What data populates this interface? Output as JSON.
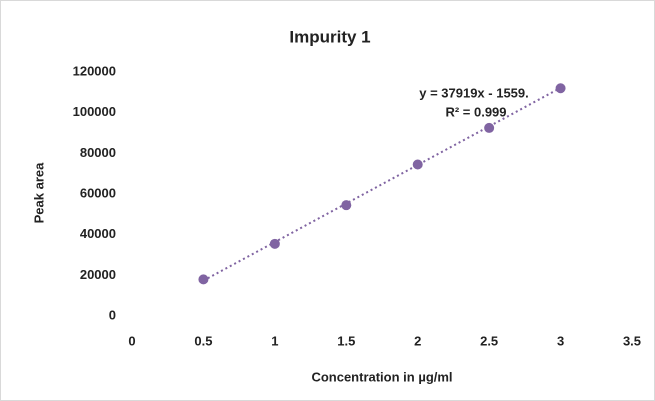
{
  "chart_data": {
    "type": "scatter",
    "title": "Impurity 1",
    "x_label": "Concentration in µg/ml",
    "y_label": "Peak area",
    "series": [
      {
        "name": "Impurity 1",
        "color": "#8064a2",
        "x": [
          0.5,
          1,
          1.5,
          2,
          2.5,
          3
        ],
        "values": [
          18000,
          35500,
          54500,
          74500,
          92500,
          112000
        ]
      }
    ],
    "trendline": {
      "slope": 37919,
      "intercept": -1559,
      "color": "#8064a2",
      "equation": "y = 37919x - 1559.",
      "r2": "R² = 0.999"
    },
    "xlim": [
      0,
      3.5
    ],
    "xticks": [
      0,
      0.5,
      1,
      1.5,
      2,
      2.5,
      3,
      3.5
    ],
    "ylim": [
      0,
      120000
    ],
    "yticks": [
      0,
      20000,
      40000,
      60000,
      80000,
      100000,
      120000
    ],
    "grid": false
  }
}
